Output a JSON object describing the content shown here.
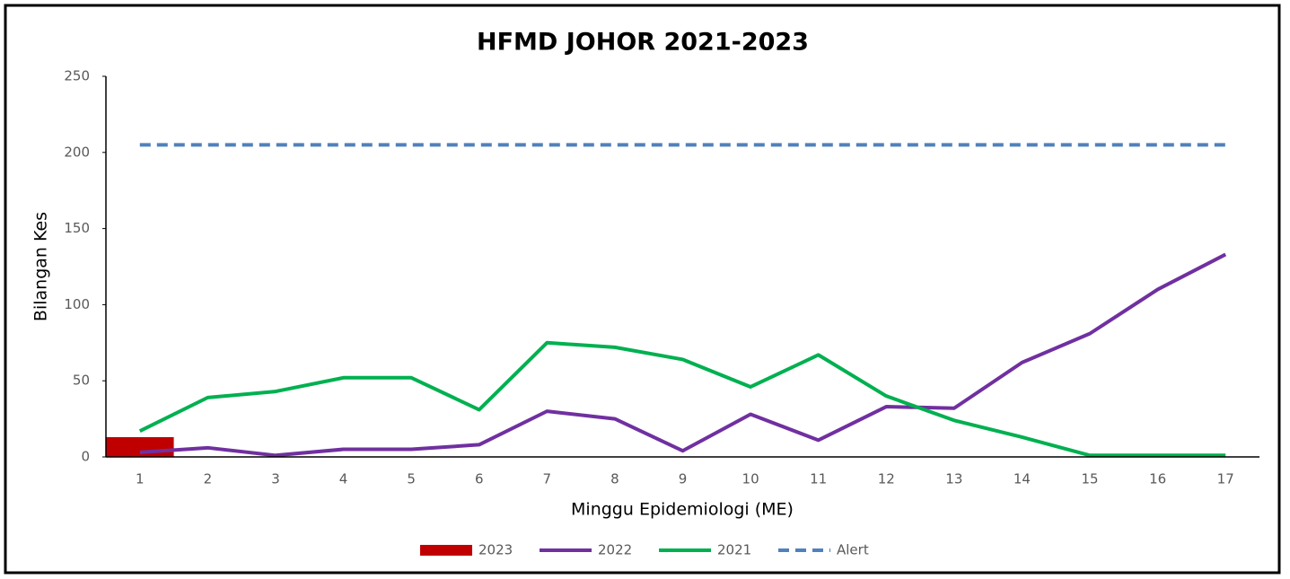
{
  "chart_data": {
    "type": "line",
    "title": "HFMD JOHOR 2021-2023",
    "x_label": "Minggu Epidemiologi (ME)",
    "y_label": "Bilangan Kes",
    "categories": [
      "1",
      "2",
      "3",
      "4",
      "5",
      "6",
      "7",
      "8",
      "9",
      "10",
      "11",
      "12",
      "13",
      "14",
      "15",
      "16",
      "17"
    ],
    "ylim": [
      0,
      250
    ],
    "yticks": [
      0,
      50,
      100,
      150,
      200,
      250
    ],
    "legend": "bottom",
    "series": [
      {
        "name": "2023",
        "type": "bar",
        "color": "#c00000",
        "values": [
          13,
          null,
          null,
          null,
          null,
          null,
          null,
          null,
          null,
          null,
          null,
          null,
          null,
          null,
          null,
          null,
          null
        ]
      },
      {
        "name": "2022",
        "type": "line",
        "color": "#7030a0",
        "values": [
          3,
          6,
          1,
          5,
          5,
          8,
          30,
          25,
          4,
          28,
          11,
          33,
          32,
          62,
          81,
          110,
          133
        ]
      },
      {
        "name": "2021",
        "type": "line",
        "color": "#00b050",
        "values": [
          17,
          39,
          43,
          52,
          52,
          31,
          75,
          72,
          64,
          46,
          67,
          40,
          24,
          13,
          1,
          1,
          1
        ]
      },
      {
        "name": "Alert",
        "type": "line",
        "dashed": true,
        "color": "#4f81bd",
        "values": [
          205,
          205,
          205,
          205,
          205,
          205,
          205,
          205,
          205,
          205,
          205,
          205,
          205,
          205,
          205,
          205,
          205
        ]
      }
    ]
  }
}
